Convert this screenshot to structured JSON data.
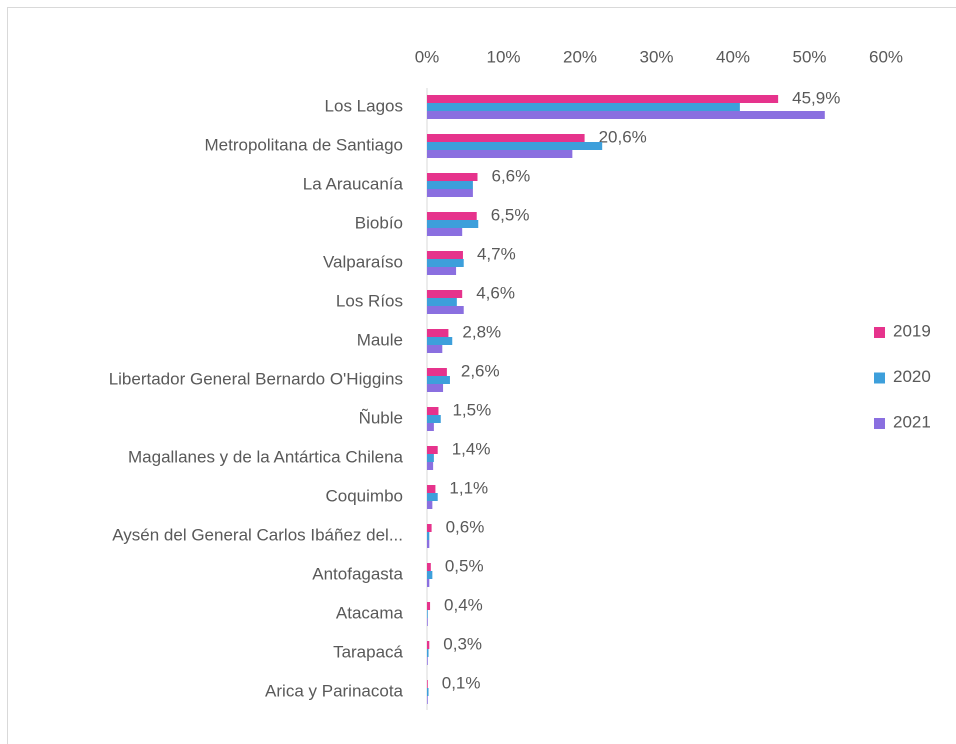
{
  "chart_data": {
    "type": "bar",
    "orientation": "horizontal",
    "categories": [
      "Los Lagos",
      "Metropolitana de Santiago",
      "La Araucanía",
      "Biobío",
      "Valparaíso",
      "Los Ríos",
      "Maule",
      "Libertador General Bernardo O'Higgins",
      "Ñuble",
      "Magallanes y de la Antártica Chilena",
      "Coquimbo",
      "Aysén del General Carlos Ibáñez del...",
      "Antofagasta",
      "Atacama",
      "Tarapacá",
      "Arica y Parinacota"
    ],
    "series": [
      {
        "name": "2019",
        "color": "#e6338c",
        "values": [
          45.9,
          20.6,
          6.6,
          6.5,
          4.7,
          4.6,
          2.8,
          2.6,
          1.5,
          1.4,
          1.1,
          0.6,
          0.5,
          0.4,
          0.3,
          0.1
        ],
        "value_labels": [
          "45,9%",
          "20,6%",
          "6,6%",
          "6,5%",
          "4,7%",
          "4,6%",
          "2,8%",
          "2,6%",
          "1,5%",
          "1,4%",
          "1,1%",
          "0,6%",
          "0,5%",
          "0,4%",
          "0,3%",
          "0,1%"
        ]
      },
      {
        "name": "2020",
        "color": "#3d9fdb",
        "values": [
          40.9,
          22.9,
          6.0,
          6.7,
          4.8,
          3.9,
          3.3,
          3.0,
          1.8,
          0.9,
          1.4,
          0.3,
          0.7,
          0.1,
          0.2,
          0.2
        ]
      },
      {
        "name": "2021",
        "color": "#8a6fe0",
        "values": [
          52.0,
          19.0,
          6.0,
          4.6,
          3.8,
          4.8,
          2.0,
          2.1,
          0.9,
          0.8,
          0.7,
          0.3,
          0.3,
          0.1,
          0.1,
          0.1
        ]
      }
    ],
    "xlim": [
      0,
      60
    ],
    "xticks": [
      {
        "value": 0,
        "label": "0%"
      },
      {
        "value": 10,
        "label": "10%"
      },
      {
        "value": 20,
        "label": "20%"
      },
      {
        "value": 30,
        "label": "30%"
      },
      {
        "value": 40,
        "label": "40%"
      },
      {
        "value": 50,
        "label": "50%"
      },
      {
        "value": 60,
        "label": "60%"
      }
    ],
    "legend": "right",
    "grid": false
  }
}
